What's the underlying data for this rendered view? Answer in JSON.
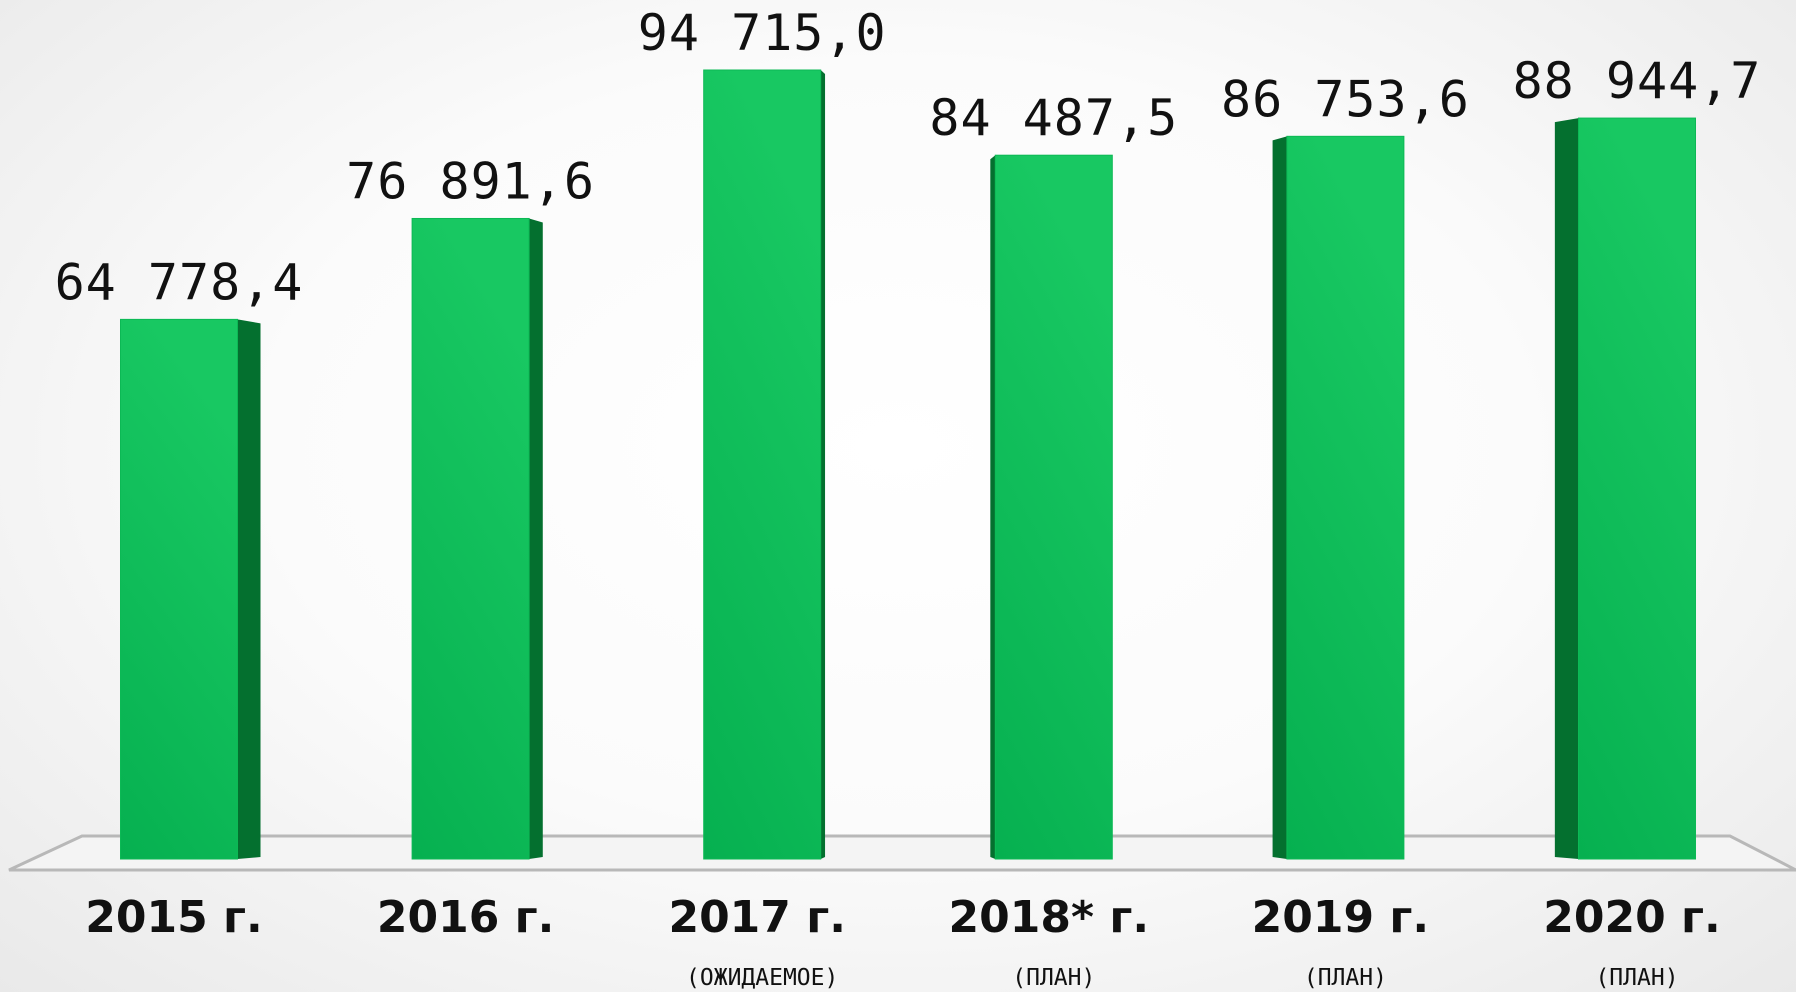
{
  "chart_data": {
    "type": "bar3d",
    "categories": [
      "2015 г.",
      "2016 г.",
      "2017 г.",
      "2018* г.",
      "2019 г.",
      "2020 г."
    ],
    "category_notes": [
      null,
      null,
      "(ОЖИДАЕМОЕ)",
      "(ПЛАН)",
      "(ПЛАН)",
      "(ПЛАН)"
    ],
    "values": [
      64778.4,
      76891.6,
      94715.0,
      84487.5,
      86753.6,
      88944.7
    ],
    "value_labels": [
      "64 778,4",
      "76 891,6",
      "94 715,0",
      "84 487,5",
      "86 753,6",
      "88 944,7"
    ],
    "color": "#0cb955",
    "side_color": "#04702f"
  }
}
